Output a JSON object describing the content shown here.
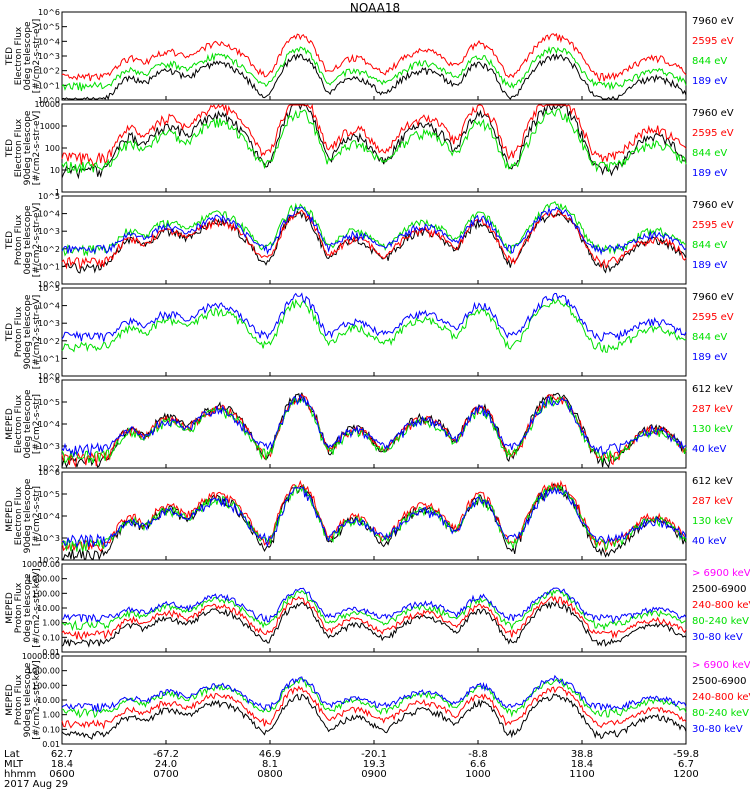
{
  "title": "NOAA18",
  "date_label": "2017 Aug 29",
  "colors": {
    "black": "#000000",
    "red": "#ff0000",
    "green": "#00e000",
    "blue": "#0000ff",
    "magenta": "#ff00ff"
  },
  "footer": {
    "row_labels": [
      "Lat",
      "MLT",
      "hhmm"
    ],
    "ticks": [
      {
        "lat": "62.7",
        "mlt": "18.4",
        "hhmm": "0600"
      },
      {
        "lat": "-67.2",
        "mlt": "24.0",
        "hhmm": "0700"
      },
      {
        "lat": "46.9",
        "mlt": "8.1",
        "hhmm": "0800"
      },
      {
        "lat": "-20.1",
        "mlt": "19.3",
        "hhmm": "0900"
      },
      {
        "lat": "-8.8",
        "mlt": "6.6",
        "hhmm": "1000"
      },
      {
        "lat": "38.8",
        "mlt": "18.4",
        "hhmm": "1100"
      },
      {
        "lat": "-59.8",
        "mlt": "6.7",
        "hhmm": "1200"
      }
    ]
  },
  "chart_data": [
    {
      "type": "line",
      "ylabel": [
        "TED",
        "Electron Flux",
        "0deg telescope",
        "[#/cm2-s-str-eV]"
      ],
      "yscale": "log",
      "ylim": [
        1,
        1000000
      ],
      "yticks": [
        "10^0",
        "10^1",
        "10^2",
        "10^3",
        "10^4",
        "10^5",
        "10^6"
      ],
      "x": [
        600,
        1200
      ],
      "series": [
        {
          "name": "7960 eV",
          "color": "black",
          "base": 1
        },
        {
          "name": "2595 eV",
          "color": "red",
          "base": 40
        },
        {
          "name": "844 eV",
          "color": "green",
          "base": 10
        },
        {
          "name": "189 eV",
          "color": "blue",
          "base": 0
        }
      ]
    },
    {
      "type": "line",
      "ylabel": [
        "TED",
        "Electron Flux",
        "90deg telescope",
        "[#/cm2-s-str-eV]"
      ],
      "yscale": "log",
      "ylim": [
        1,
        10000
      ],
      "yticks": [
        "1",
        "10",
        "100",
        "1000",
        "10000"
      ],
      "x": [
        600,
        1200
      ],
      "series": [
        {
          "name": "7960 eV",
          "color": "black",
          "base": 10
        },
        {
          "name": "2595 eV",
          "color": "red",
          "base": 40
        },
        {
          "name": "844 eV",
          "color": "green",
          "base": 15
        },
        {
          "name": "189 eV",
          "color": "blue",
          "base": 0
        }
      ]
    },
    {
      "type": "line",
      "ylabel": [
        "TED",
        "Proton Flux",
        "0deg telescope",
        "[#/cm2-s-str-eV]"
      ],
      "yscale": "log",
      "ylim": [
        1,
        100000
      ],
      "yticks": [
        "10^0",
        "10^1",
        "10^2",
        "10^3",
        "10^4",
        "10^5"
      ],
      "x": [
        600,
        1200
      ],
      "series": [
        {
          "name": "7960 eV",
          "color": "black",
          "base": 10
        },
        {
          "name": "2595 eV",
          "color": "red",
          "base": 20
        },
        {
          "name": "844 eV",
          "color": "green",
          "base": 100
        },
        {
          "name": "189 eV",
          "color": "blue",
          "base": 100
        }
      ]
    },
    {
      "type": "line",
      "ylabel": [
        "TED",
        "Proton Flux",
        "90deg telescope",
        "[#/cm2-s-str-eV]"
      ],
      "yscale": "log",
      "ylim": [
        1,
        100000
      ],
      "yticks": [
        "10^0",
        "10^1",
        "10^2",
        "10^3",
        "10^4",
        "10^5"
      ],
      "x": [
        600,
        1200
      ],
      "series": [
        {
          "name": "7960 eV",
          "color": "black",
          "base": 0
        },
        {
          "name": "2595 eV",
          "color": "red",
          "base": 0
        },
        {
          "name": "844 eV",
          "color": "green",
          "base": 50
        },
        {
          "name": "189 eV",
          "color": "blue",
          "base": 200
        }
      ]
    },
    {
      "type": "line",
      "ylabel": [
        "MEPED",
        "Electron Flux",
        "0deg telescope",
        "[#/cm2-s-str]"
      ],
      "yscale": "log",
      "ylim": [
        100,
        1000000
      ],
      "yticks": [
        "10^2",
        "10^3",
        "10^4",
        "10^5",
        "10^6"
      ],
      "x": [
        600,
        1200
      ],
      "series": [
        {
          "name": "612 keV",
          "color": "black",
          "base": 200
        },
        {
          "name": "287 keV",
          "color": "red",
          "base": 300
        },
        {
          "name": "130 keV",
          "color": "green",
          "base": 400
        },
        {
          "name": "40 keV",
          "color": "blue",
          "base": 800
        }
      ]
    },
    {
      "type": "line",
      "ylabel": [
        "MEPED",
        "Electron Flux",
        "90deg telescope",
        "[#/cm2-s-str]"
      ],
      "yscale": "log",
      "ylim": [
        100,
        1000000
      ],
      "yticks": [
        "10^2",
        "10^3",
        "10^4",
        "10^5",
        "10^6"
      ],
      "x": [
        600,
        1200
      ],
      "series": [
        {
          "name": "612 keV",
          "color": "black",
          "base": 200
        },
        {
          "name": "287 keV",
          "color": "red",
          "base": 500
        },
        {
          "name": "130 keV",
          "color": "green",
          "base": 600
        },
        {
          "name": "40 keV",
          "color": "blue",
          "base": 900
        }
      ]
    },
    {
      "type": "line",
      "ylabel": [
        "MEPED",
        "Proton Flux",
        "0deg telescope",
        "[#/cm2-s-str-keV]"
      ],
      "yscale": "log",
      "ylim": [
        0.01,
        20000
      ],
      "yticks": [
        "0.01",
        "0.10",
        "1.00",
        "10.00",
        "100.00",
        "1000.00",
        "10000.00"
      ],
      "x": [
        600,
        1200
      ],
      "series": [
        {
          "name": "> 6900 keV",
          "color": "magenta",
          "base": 0
        },
        {
          "name": "2500-6900",
          "color": "black",
          "base": 0.05
        },
        {
          "name": "240-800 keV",
          "color": "red",
          "base": 0.2
        },
        {
          "name": "80-240 keV",
          "color": "green",
          "base": 1
        },
        {
          "name": "30-80 keV",
          "color": "blue",
          "base": 3
        }
      ]
    },
    {
      "type": "line",
      "ylabel": [
        "MEPED",
        "Proton Flux",
        "90deg telescope",
        "[#/cm2-s-str-keV]"
      ],
      "yscale": "log",
      "ylim": [
        0.01,
        20000
      ],
      "yticks": [
        "0.01",
        "0.10",
        "1.00",
        "10.00",
        "100.00",
        "1000.00",
        "10000.00"
      ],
      "x": [
        600,
        1200
      ],
      "series": [
        {
          "name": "> 6900 keV",
          "color": "magenta",
          "base": 0
        },
        {
          "name": "2500-6900",
          "color": "black",
          "base": 0.05
        },
        {
          "name": "240-800 keV",
          "color": "red",
          "base": 0.3
        },
        {
          "name": "80-240 keV",
          "color": "green",
          "base": 2
        },
        {
          "name": "30-80 keV",
          "color": "blue",
          "base": 5
        }
      ]
    }
  ]
}
